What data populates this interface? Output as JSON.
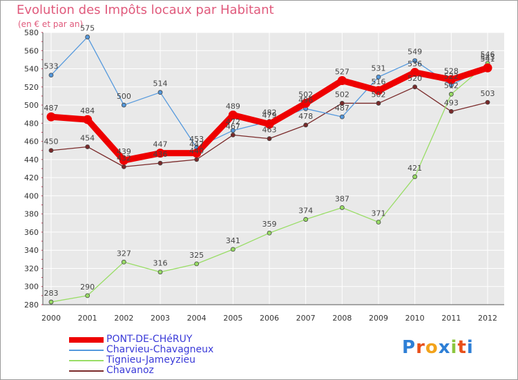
{
  "chart_data": {
    "type": "line",
    "title": "Evolution des Impôts locaux par Habitant",
    "subtitle": "(en € et par an)",
    "categories": [
      "2000",
      "2001",
      "2002",
      "2003",
      "2004",
      "2005",
      "2006",
      "2007",
      "2008",
      "2009",
      "2010",
      "2011",
      "2012"
    ],
    "ylim": [
      280,
      580
    ],
    "yticks": [
      280,
      300,
      320,
      340,
      360,
      380,
      400,
      420,
      440,
      460,
      480,
      500,
      520,
      540,
      560,
      580
    ],
    "series": [
      {
        "name": "Chavanoz",
        "color": "#7a2a2a",
        "values": [
          450,
          454,
          432,
          436,
          440,
          467,
          463,
          478,
          502,
          502,
          520,
          493,
          503
        ],
        "labels": [
          "450",
          "454",
          "432",
          "436",
          "440",
          "467",
          "463",
          "478",
          "502",
          "502",
          "520",
          "493",
          "503"
        ]
      },
      {
        "name": "Tignieu-Jameyzieu",
        "color": "#99dd66",
        "values": [
          283,
          290,
          327,
          316,
          325,
          341,
          359,
          374,
          387,
          371,
          421,
          512,
          546
        ],
        "labels": [
          "283",
          "290",
          "327",
          "316",
          "325",
          "341",
          "359",
          "374",
          "387",
          "371",
          "421",
          "512",
          "546"
        ]
      },
      {
        "name": "Charvieu-Chavagneux",
        "color": "#5599dd",
        "values": [
          533,
          575,
          500,
          514,
          453,
          472,
          482,
          496,
          487,
          531,
          549,
          522,
          543
        ],
        "labels": [
          "533",
          "575",
          "500",
          "514",
          "453",
          "472",
          "482",
          "496",
          "487",
          "531",
          "549",
          "522",
          "543"
        ]
      },
      {
        "name": "PONT-DE-CHéRUY",
        "color": "#ee0000",
        "values": [
          487,
          484,
          439,
          447,
          447,
          489,
          479,
          502,
          527,
          516,
          536,
          528,
          541
        ],
        "labels": [
          "487",
          "484",
          "439",
          "447",
          "447",
          "489",
          "479",
          "502",
          "527",
          "516",
          "536",
          "528",
          "541"
        ]
      }
    ],
    "legend": [
      {
        "name": "PONT-DE-CHéRUY",
        "color": "#ee0000"
      },
      {
        "name": "Charvieu-Chavagneux",
        "color": "#5599dd"
      },
      {
        "name": "Tignieu-Jameyzieu",
        "color": "#99dd66"
      },
      {
        "name": "Chavanoz",
        "color": "#7a2a2a"
      }
    ]
  },
  "brand": {
    "letters": [
      "P",
      "r",
      "o",
      "x",
      "i",
      "t",
      "i"
    ],
    "colors": [
      "#2e7fd6",
      "#e8501a",
      "#f2a31b",
      "#2e7fd6",
      "#8cc63f",
      "#e8501a",
      "#2e7fd6"
    ]
  }
}
